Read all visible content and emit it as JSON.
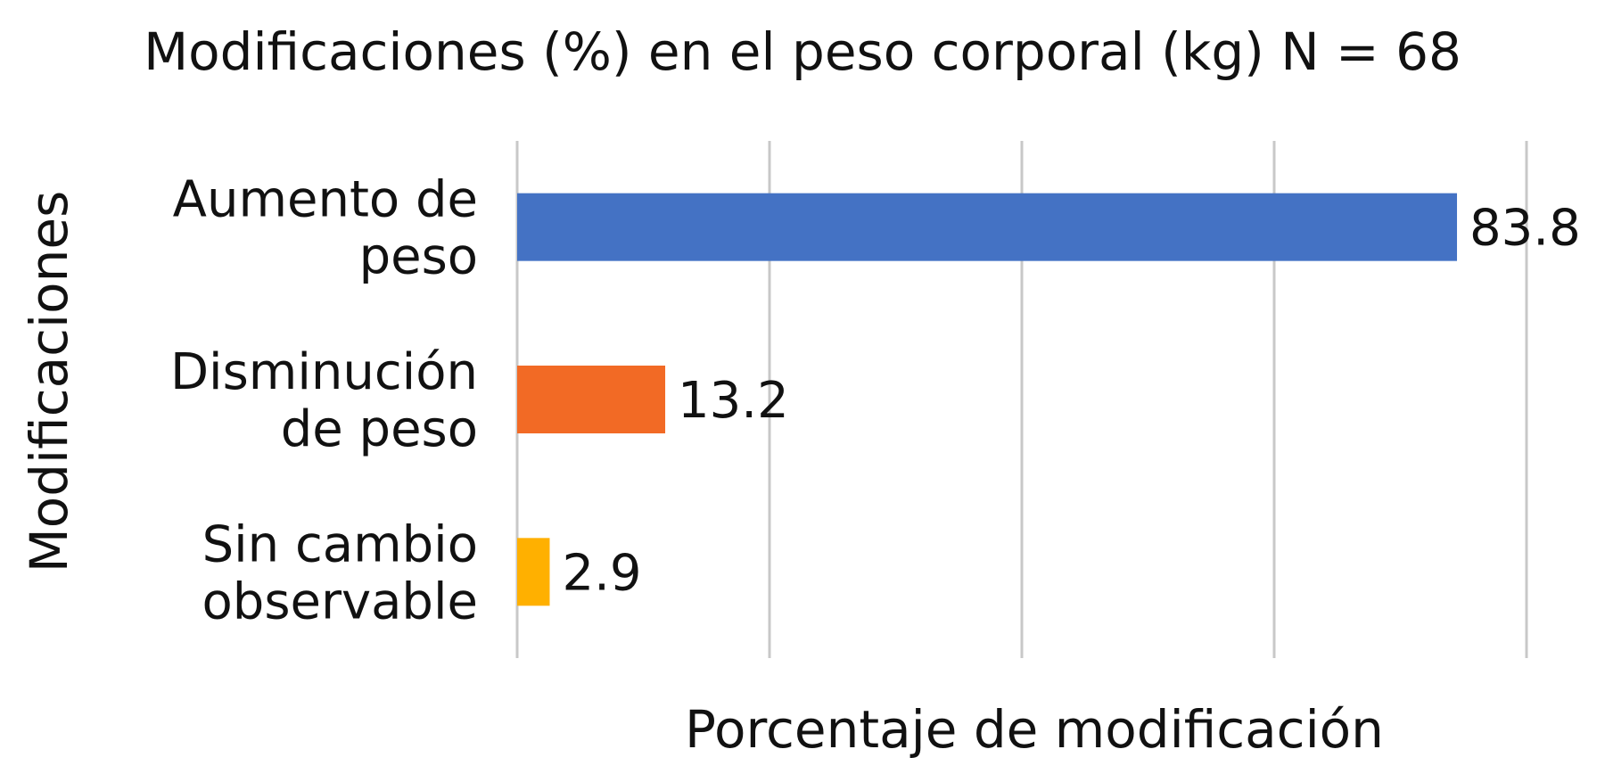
{
  "chart_data": {
    "type": "bar",
    "orientation": "horizontal",
    "title": "Modificaciones (%) en el peso corporal (kg) N = 68",
    "xlabel": "Porcentaje de modificación",
    "ylabel": "Modificaciones",
    "categories": [
      [
        "Aumento de",
        "peso"
      ],
      [
        "Disminución",
        "de peso"
      ],
      [
        "Sin cambio",
        "observable"
      ]
    ],
    "values": [
      83.8,
      13.2,
      2.9
    ],
    "data_labels": [
      "83.8",
      "13.2",
      "2.9"
    ],
    "colors": [
      "#4472C4",
      "#F26A25",
      "#FFB000"
    ],
    "xlim": [
      0,
      90
    ],
    "grid_x_values": [
      0,
      22.5,
      45,
      67.5,
      90
    ],
    "grid": true,
    "legend": "none"
  }
}
